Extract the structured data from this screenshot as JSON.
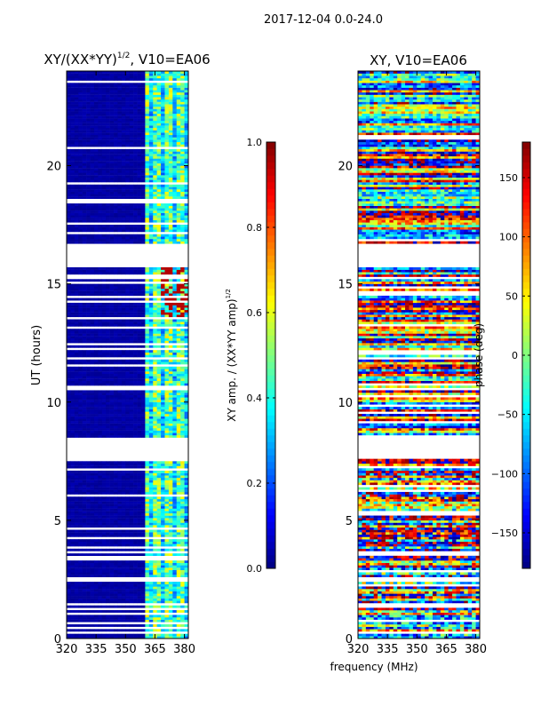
{
  "suptitle": "2017-12-04 0.0-24.0",
  "xlabel": "frequency (MHz)",
  "chart_data": [
    {
      "type": "heatmap",
      "title": "XY/(XX*YY)",
      "title_sup": "1/2",
      "title_suffix": ", V10=EA06",
      "ylabel": "UT (hours)",
      "xlim": [
        320,
        382
      ],
      "ylim": [
        0,
        24
      ],
      "xticks": [
        "320",
        "335",
        "350",
        "365",
        "380"
      ],
      "xtick_values": [
        320,
        335,
        350,
        365,
        380
      ],
      "yticks": [
        "0",
        "5",
        "10",
        "15",
        "20"
      ],
      "ytick_values": [
        0,
        5,
        10,
        15,
        20
      ],
      "colorbar": {
        "label": "XY amp. / (XX*YY amp)",
        "label_sup": "1/2",
        "range": [
          0,
          1
        ],
        "ticks": [
          "0.0",
          "0.2",
          "0.4",
          "0.6",
          "0.8",
          "1.0"
        ],
        "tick_values": [
          0,
          0.2,
          0.4,
          0.6,
          0.8,
          1.0
        ]
      },
      "flagged_gaps_hours": [
        [
          1.4,
          1.5
        ],
        [
          2.4,
          2.6
        ],
        [
          7.5,
          8.4
        ],
        [
          15.6,
          16.6
        ]
      ],
      "active_band_MHz": [
        360,
        382
      ],
      "baseline_value": 0.02,
      "band_value": 0.45,
      "peak_value": 0.95
    },
    {
      "type": "heatmap",
      "title": "XY, V10=EA06",
      "ylabel": "",
      "xlim": [
        320,
        382
      ],
      "ylim": [
        0,
        24
      ],
      "xticks": [
        "320",
        "335",
        "350",
        "365",
        "380"
      ],
      "xtick_values": [
        320,
        335,
        350,
        365,
        380
      ],
      "yticks": [
        "0",
        "5",
        "10",
        "15",
        "20"
      ],
      "ytick_values": [
        0,
        5,
        10,
        15,
        20
      ],
      "colorbar": {
        "label": "phase (deg)",
        "range": [
          -180,
          180
        ],
        "ticks": [
          "−150",
          "−100",
          "−50",
          "0",
          "50",
          "100",
          "150"
        ],
        "tick_values": [
          -150,
          -100,
          -50,
          0,
          50,
          100,
          150
        ]
      },
      "flagged_gaps_hours": [
        [
          1.4,
          1.5
        ],
        [
          2.4,
          2.6
        ],
        [
          7.5,
          8.4
        ],
        [
          15.6,
          16.6
        ]
      ]
    }
  ]
}
